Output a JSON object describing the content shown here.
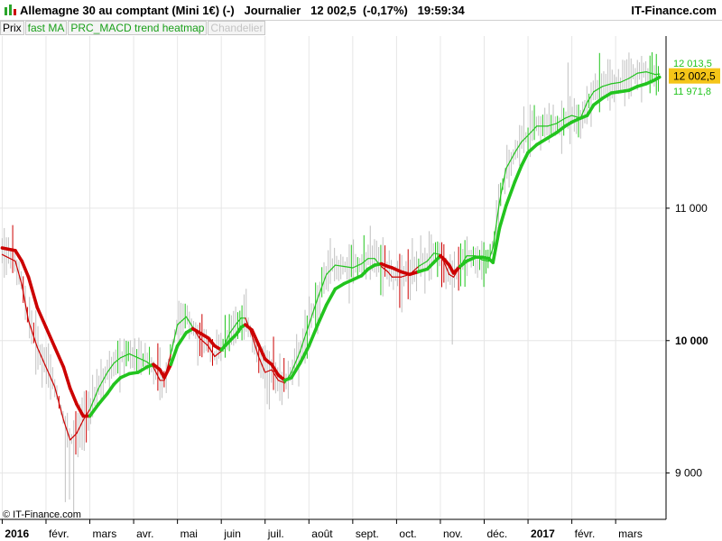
{
  "header": {
    "title": "Allemagne 30 au comptant (Mini 1€) (-)   Journalier   12 002,5  (-0,17%)   19:59:34",
    "brand": "IT-Finance.com"
  },
  "tabs": [
    {
      "label": "Prix",
      "style": "normal"
    },
    {
      "label": "fast MA",
      "style": "green"
    },
    {
      "label": "PRC_MACD trend heatmap",
      "style": "green"
    },
    {
      "label": "Chandelier",
      "style": "faded"
    }
  ],
  "copyright": "© IT-Finance.com",
  "colors": {
    "bear": "#cc0000",
    "bull": "#22c41e",
    "candle": "#c0c0c0",
    "price_badge": "#f5c518",
    "grid": "#e6e6e6"
  },
  "chart_data": {
    "type": "line",
    "ylim": [
      8650,
      12300
    ],
    "x_axis": {
      "start_month_offset": -0.05,
      "span_months": 15.2
    },
    "y_ticks": [
      {
        "value": 9000,
        "label": "9 000",
        "bold": false
      },
      {
        "value": 10000,
        "label": "10 000",
        "bold": true
      },
      {
        "value": 11000,
        "label": "11 000",
        "bold": false
      }
    ],
    "x_ticks": [
      {
        "month": 0,
        "label": "2016",
        "bold": true
      },
      {
        "month": 1,
        "label": "févr.",
        "bold": false
      },
      {
        "month": 2,
        "label": "mars",
        "bold": false
      },
      {
        "month": 3,
        "label": "avr.",
        "bold": false
      },
      {
        "month": 4,
        "label": "mai",
        "bold": false
      },
      {
        "month": 5,
        "label": "juin",
        "bold": false
      },
      {
        "month": 6,
        "label": "juil.",
        "bold": false
      },
      {
        "month": 7,
        "label": "août",
        "bold": false
      },
      {
        "month": 8,
        "label": "sept.",
        "bold": false
      },
      {
        "month": 9,
        "label": "oct.",
        "bold": false
      },
      {
        "month": 10,
        "label": "nov.",
        "bold": false
      },
      {
        "month": 11,
        "label": "déc.",
        "bold": false
      },
      {
        "month": 12,
        "label": "2017",
        "bold": true
      },
      {
        "month": 13,
        "label": "févr.",
        "bold": false
      },
      {
        "month": 14,
        "label": "mars",
        "bold": false
      }
    ],
    "price_labels": [
      {
        "value": 12013.5,
        "label": "12 013,5",
        "style": "green-text"
      },
      {
        "value": 12002.5,
        "label": "12 002,5",
        "style": "badge"
      },
      {
        "value": 11971.8,
        "label": "11 971,8",
        "style": "green-text"
      }
    ],
    "series": [
      {
        "role": "slow",
        "points": [
          [
            0.0,
            10700
          ],
          [
            0.3,
            10680
          ],
          [
            0.45,
            10600
          ],
          [
            0.6,
            10480
          ],
          [
            0.8,
            10250
          ],
          [
            1.0,
            10100
          ],
          [
            1.2,
            9950
          ],
          [
            1.4,
            9800
          ],
          [
            1.55,
            9640
          ],
          [
            1.7,
            9520
          ],
          [
            1.85,
            9430
          ],
          [
            2.0,
            9430
          ],
          [
            2.2,
            9520
          ],
          [
            2.4,
            9600
          ],
          [
            2.55,
            9670
          ],
          [
            2.7,
            9720
          ],
          [
            2.9,
            9750
          ],
          [
            3.1,
            9760
          ],
          [
            3.3,
            9800
          ],
          [
            3.45,
            9820
          ],
          [
            3.6,
            9780
          ],
          [
            3.7,
            9720
          ],
          [
            3.85,
            9820
          ],
          [
            4.0,
            9960
          ],
          [
            4.2,
            10060
          ],
          [
            4.35,
            10090
          ],
          [
            4.5,
            10060
          ],
          [
            4.7,
            10020
          ],
          [
            4.85,
            9960
          ],
          [
            5.0,
            9930
          ],
          [
            5.2,
            10000
          ],
          [
            5.35,
            10050
          ],
          [
            5.45,
            10100
          ],
          [
            5.55,
            10120
          ],
          [
            5.7,
            10080
          ],
          [
            5.85,
            9970
          ],
          [
            6.0,
            9860
          ],
          [
            6.15,
            9820
          ],
          [
            6.3,
            9740
          ],
          [
            6.45,
            9700
          ],
          [
            6.6,
            9720
          ],
          [
            6.8,
            9830
          ],
          [
            7.0,
            9960
          ],
          [
            7.2,
            10120
          ],
          [
            7.4,
            10270
          ],
          [
            7.6,
            10390
          ],
          [
            7.8,
            10430
          ],
          [
            8.0,
            10460
          ],
          [
            8.2,
            10490
          ],
          [
            8.35,
            10540
          ],
          [
            8.5,
            10570
          ],
          [
            8.65,
            10580
          ],
          [
            8.8,
            10560
          ],
          [
            8.9,
            10550
          ],
          [
            9.1,
            10520
          ],
          [
            9.3,
            10500
          ],
          [
            9.5,
            10520
          ],
          [
            9.7,
            10540
          ],
          [
            9.85,
            10590
          ],
          [
            10.0,
            10640
          ],
          [
            10.1,
            10610
          ],
          [
            10.2,
            10570
          ],
          [
            10.3,
            10510
          ],
          [
            10.45,
            10560
          ],
          [
            10.6,
            10600
          ],
          [
            10.8,
            10630
          ],
          [
            10.95,
            10630
          ],
          [
            11.1,
            10620
          ],
          [
            11.2,
            10590
          ],
          [
            11.35,
            10850
          ],
          [
            11.5,
            11020
          ],
          [
            11.7,
            11200
          ],
          [
            11.85,
            11320
          ],
          [
            12.0,
            11420
          ],
          [
            12.2,
            11480
          ],
          [
            12.45,
            11530
          ],
          [
            12.65,
            11570
          ],
          [
            12.85,
            11620
          ],
          [
            13.0,
            11650
          ],
          [
            13.2,
            11680
          ],
          [
            13.35,
            11700
          ],
          [
            13.5,
            11780
          ],
          [
            13.7,
            11830
          ],
          [
            13.9,
            11870
          ],
          [
            14.1,
            11880
          ],
          [
            14.3,
            11890
          ],
          [
            14.5,
            11920
          ],
          [
            14.7,
            11940
          ],
          [
            14.9,
            11970
          ],
          [
            15.0,
            11990
          ]
        ],
        "trend": [
          [
            0.0,
            "bear"
          ],
          [
            2.0,
            "bull"
          ],
          [
            3.5,
            "bear"
          ],
          [
            3.8,
            "bull"
          ],
          [
            4.35,
            "bear"
          ],
          [
            5.0,
            "bull"
          ],
          [
            5.55,
            "bear"
          ],
          [
            6.5,
            "bull"
          ],
          [
            8.7,
            "bear"
          ],
          [
            9.5,
            "bull"
          ],
          [
            9.95,
            "bear"
          ],
          [
            10.45,
            "bull"
          ]
        ]
      },
      {
        "role": "fast",
        "points": [
          [
            0.0,
            10650
          ],
          [
            0.3,
            10600
          ],
          [
            0.45,
            10420
          ],
          [
            0.6,
            10150
          ],
          [
            0.8,
            9950
          ],
          [
            1.0,
            9800
          ],
          [
            1.2,
            9650
          ],
          [
            1.4,
            9400
          ],
          [
            1.55,
            9250
          ],
          [
            1.7,
            9300
          ],
          [
            1.85,
            9400
          ],
          [
            2.0,
            9480
          ],
          [
            2.2,
            9640
          ],
          [
            2.4,
            9760
          ],
          [
            2.55,
            9830
          ],
          [
            2.7,
            9870
          ],
          [
            2.9,
            9900
          ],
          [
            3.1,
            9870
          ],
          [
            3.3,
            9840
          ],
          [
            3.45,
            9800
          ],
          [
            3.6,
            9700
          ],
          [
            3.7,
            9700
          ],
          [
            3.85,
            9900
          ],
          [
            4.0,
            10120
          ],
          [
            4.2,
            10180
          ],
          [
            4.35,
            10100
          ],
          [
            4.5,
            10020
          ],
          [
            4.7,
            9960
          ],
          [
            4.85,
            9880
          ],
          [
            5.0,
            9920
          ],
          [
            5.2,
            10060
          ],
          [
            5.35,
            10130
          ],
          [
            5.45,
            10170
          ],
          [
            5.55,
            10170
          ],
          [
            5.7,
            10040
          ],
          [
            5.85,
            9880
          ],
          [
            6.0,
            9760
          ],
          [
            6.15,
            9780
          ],
          [
            6.3,
            9700
          ],
          [
            6.45,
            9680
          ],
          [
            6.6,
            9760
          ],
          [
            6.8,
            9920
          ],
          [
            7.0,
            10120
          ],
          [
            7.2,
            10320
          ],
          [
            7.4,
            10500
          ],
          [
            7.6,
            10570
          ],
          [
            7.8,
            10560
          ],
          [
            8.0,
            10550
          ],
          [
            8.2,
            10580
          ],
          [
            8.35,
            10620
          ],
          [
            8.5,
            10620
          ],
          [
            8.65,
            10560
          ],
          [
            8.8,
            10520
          ],
          [
            8.9,
            10480
          ],
          [
            9.1,
            10480
          ],
          [
            9.3,
            10500
          ],
          [
            9.5,
            10560
          ],
          [
            9.7,
            10600
          ],
          [
            9.85,
            10660
          ],
          [
            10.0,
            10650
          ],
          [
            10.1,
            10580
          ],
          [
            10.2,
            10500
          ],
          [
            10.3,
            10480
          ],
          [
            10.45,
            10560
          ],
          [
            10.6,
            10640
          ],
          [
            10.8,
            10640
          ],
          [
            10.95,
            10610
          ],
          [
            11.1,
            10600
          ],
          [
            11.2,
            10700
          ],
          [
            11.35,
            11050
          ],
          [
            11.5,
            11300
          ],
          [
            11.7,
            11420
          ],
          [
            11.85,
            11500
          ],
          [
            12.0,
            11550
          ],
          [
            12.2,
            11620
          ],
          [
            12.45,
            11620
          ],
          [
            12.65,
            11640
          ],
          [
            12.85,
            11680
          ],
          [
            13.0,
            11700
          ],
          [
            13.2,
            11680
          ],
          [
            13.35,
            11800
          ],
          [
            13.5,
            11880
          ],
          [
            13.7,
            11920
          ],
          [
            13.9,
            11940
          ],
          [
            14.1,
            11950
          ],
          [
            14.3,
            11980
          ],
          [
            14.5,
            12020
          ],
          [
            14.7,
            12030
          ],
          [
            14.9,
            12010
          ],
          [
            15.0,
            12013
          ]
        ]
      }
    ]
  }
}
